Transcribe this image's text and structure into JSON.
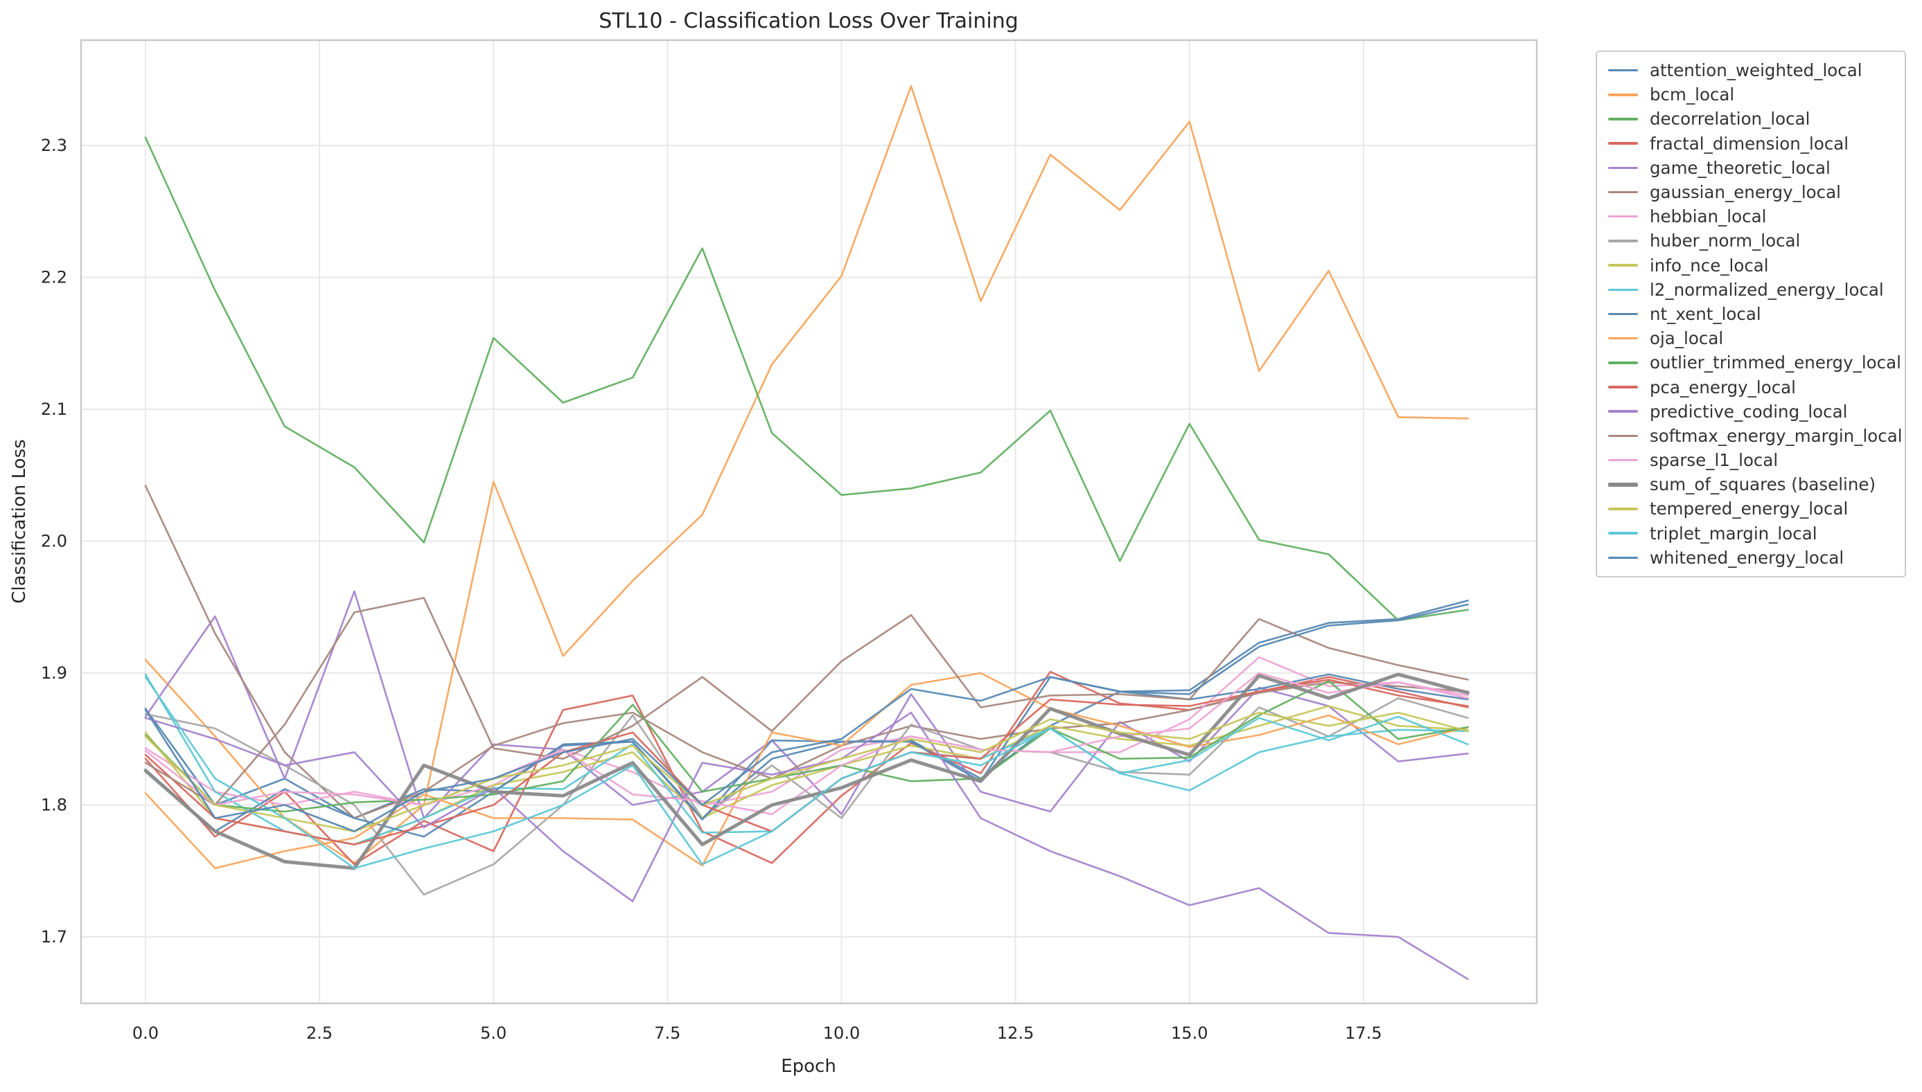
{
  "title": "STL10 - Classification Loss Over Training",
  "x_axis": {
    "label": "Epoch",
    "ticks": [
      "0.0",
      "2.5",
      "5.0",
      "7.5",
      "10.0",
      "12.5",
      "15.0",
      "17.5"
    ]
  },
  "y_axis": {
    "label": "Classification Loss",
    "ticks": [
      "1.7",
      "1.8",
      "1.9",
      "2.0",
      "2.1",
      "2.2",
      "2.3"
    ]
  },
  "colors": {
    "blue": "#5789b3",
    "orange": "#f8a55d",
    "green": "#62b062",
    "red": "#d8685f",
    "purple": "#a583cd",
    "brown": "#a8877d",
    "pink": "#eda4d4",
    "gray": "#a6a6a6",
    "olive": "#c5c659",
    "cyan": "#5dc8d6",
    "baseline_gray": "#8a8a8a",
    "grid": "#e8e8e8",
    "frame": "#c9c9c9",
    "text": "#262626",
    "legend_text": "#333333"
  },
  "chart_data": {
    "type": "line",
    "x": [
      0,
      1,
      2,
      3,
      4,
      5,
      6,
      7,
      8,
      9,
      10,
      11,
      12,
      13,
      14,
      15,
      16,
      17,
      18,
      19
    ],
    "xlim": [
      -0.95,
      20.0
    ],
    "ylim": [
      1.643,
      2.38
    ],
    "grid": true,
    "legend_position": "right-outside",
    "xlabel": "Epoch",
    "ylabel": "Classification Loss",
    "series": [
      {
        "name": "attention_weighted_local",
        "color": "#5789b3",
        "line_width": 2.6,
        "values": [
          1.873,
          1.8,
          1.82,
          1.79,
          1.812,
          1.81,
          1.845,
          1.848,
          1.79,
          1.835,
          1.848,
          1.849,
          1.82,
          1.86,
          1.886,
          1.887,
          1.923,
          1.938,
          1.941,
          1.955
        ]
      },
      {
        "name": "bcm_local",
        "color": "#f8a55d",
        "line_width": 2.6,
        "values": [
          1.91,
          1.852,
          1.79,
          1.756,
          1.8,
          2.045,
          1.913,
          1.97,
          2.02,
          2.134,
          2.201,
          2.345,
          2.182,
          2.293,
          2.251,
          2.318,
          2.129,
          2.205,
          2.094,
          2.093
        ]
      },
      {
        "name": "decorrelation_local",
        "color": "#62b062",
        "line_width": 2.6,
        "values": [
          2.306,
          2.19,
          2.087,
          2.056,
          1.999,
          2.154,
          2.105,
          2.124,
          2.222,
          2.082,
          2.035,
          2.04,
          2.052,
          2.099,
          1.985,
          2.089,
          2.001,
          1.99,
          1.94,
          1.948
        ]
      },
      {
        "name": "fractal_dimension_local",
        "color": "#d8685f",
        "line_width": 2.6,
        "values": [
          1.835,
          1.776,
          1.81,
          1.755,
          1.788,
          1.765,
          1.872,
          1.883,
          1.78,
          1.756,
          1.807,
          1.847,
          1.824,
          1.901,
          1.877,
          1.872,
          1.886,
          1.897,
          1.886,
          1.874
        ]
      },
      {
        "name": "game_theoretic_local",
        "color": "#a583cd",
        "line_width": 2.6,
        "values": [
          1.867,
          1.943,
          1.82,
          1.962,
          1.79,
          1.846,
          1.842,
          1.8,
          1.81,
          1.849,
          1.793,
          1.884,
          1.81,
          1.795,
          1.863,
          1.833,
          1.889,
          1.875,
          1.833,
          1.839
        ]
      },
      {
        "name": "gaussian_energy_local",
        "color": "#a8877d",
        "line_width": 2.6,
        "values": [
          2.042,
          1.93,
          1.84,
          1.79,
          1.81,
          1.845,
          1.862,
          1.87,
          1.84,
          1.82,
          1.845,
          1.86,
          1.85,
          1.858,
          1.862,
          1.872,
          1.885,
          1.893,
          1.89,
          1.886
        ]
      },
      {
        "name": "hebbian_local",
        "color": "#eda4d4",
        "line_width": 2.6,
        "values": [
          1.843,
          1.81,
          1.8,
          1.81,
          1.8,
          1.815,
          1.842,
          1.825,
          1.8,
          1.81,
          1.842,
          1.852,
          1.842,
          1.84,
          1.84,
          1.865,
          1.912,
          1.89,
          1.893,
          1.883
        ]
      },
      {
        "name": "huber_norm_local",
        "color": "#a6a6a6",
        "line_width": 2.6,
        "values": [
          1.869,
          1.858,
          1.83,
          1.8,
          1.732,
          1.755,
          1.8,
          1.868,
          1.79,
          1.83,
          1.79,
          1.861,
          1.842,
          1.84,
          1.825,
          1.823,
          1.874,
          1.852,
          1.881,
          1.866
        ]
      },
      {
        "name": "info_nce_local",
        "color": "#c5c659",
        "line_width": 2.6,
        "values": [
          1.855,
          1.79,
          1.78,
          1.77,
          1.79,
          1.815,
          1.825,
          1.84,
          1.79,
          1.815,
          1.83,
          1.845,
          1.835,
          1.86,
          1.85,
          1.845,
          1.86,
          1.875,
          1.86,
          1.857
        ]
      },
      {
        "name": "l2_normalized_energy_local",
        "color": "#5dc8d6",
        "line_width": 2.6,
        "values": [
          1.899,
          1.81,
          1.78,
          1.77,
          1.79,
          1.813,
          1.812,
          1.846,
          1.779,
          1.78,
          1.82,
          1.84,
          1.835,
          1.858,
          1.824,
          1.811,
          1.84,
          1.852,
          1.857,
          1.856
        ]
      },
      {
        "name": "nt_xent_local",
        "color": "#5789b3",
        "line_width": 2.6,
        "values": [
          1.827,
          1.78,
          1.812,
          1.79,
          1.776,
          1.81,
          1.846,
          1.848,
          1.789,
          1.849,
          1.848,
          1.848,
          1.818,
          1.897,
          1.886,
          1.88,
          1.888,
          1.899,
          1.888,
          1.88
        ]
      },
      {
        "name": "oja_local",
        "color": "#f8a55d",
        "line_width": 2.6,
        "values": [
          1.809,
          1.752,
          1.765,
          1.775,
          1.808,
          1.79,
          1.79,
          1.789,
          1.754,
          1.855,
          1.845,
          1.891,
          1.9,
          1.873,
          1.86,
          1.844,
          1.853,
          1.868,
          1.846,
          1.859
        ]
      },
      {
        "name": "outlier_trimmed_energy_local",
        "color": "#62b062",
        "line_width": 2.6,
        "values": [
          1.853,
          1.8,
          1.795,
          1.802,
          1.804,
          1.808,
          1.818,
          1.876,
          1.81,
          1.82,
          1.83,
          1.818,
          1.82,
          1.858,
          1.835,
          1.836,
          1.868,
          1.894,
          1.85,
          1.859
        ]
      },
      {
        "name": "pca_energy_local",
        "color": "#d8685f",
        "line_width": 2.6,
        "values": [
          1.838,
          1.79,
          1.78,
          1.77,
          1.784,
          1.8,
          1.84,
          1.855,
          1.8,
          1.78,
          1.82,
          1.84,
          1.835,
          1.88,
          1.876,
          1.875,
          1.886,
          1.895,
          1.883,
          1.875
        ]
      },
      {
        "name": "predictive_coding_local",
        "color": "#a583cd",
        "line_width": 2.6,
        "values": [
          1.866,
          1.85,
          1.83,
          1.84,
          1.783,
          1.813,
          1.765,
          1.727,
          1.832,
          1.823,
          1.835,
          1.87,
          1.79,
          1.765,
          1.746,
          1.724,
          1.737,
          1.703,
          1.7,
          1.668
        ]
      },
      {
        "name": "softmax_energy_margin_local",
        "color": "#a8877d",
        "line_width": 2.6,
        "values": [
          1.832,
          1.8,
          1.861,
          1.946,
          1.957,
          1.843,
          1.835,
          1.86,
          1.897,
          1.856,
          1.909,
          1.944,
          1.874,
          1.883,
          1.884,
          1.88,
          1.941,
          1.919,
          1.906,
          1.895
        ]
      },
      {
        "name": "sparse_l1_local",
        "color": "#eda4d4",
        "line_width": 2.6,
        "values": [
          1.841,
          1.8,
          1.81,
          1.808,
          1.8,
          1.82,
          1.842,
          1.808,
          1.803,
          1.793,
          1.83,
          1.852,
          1.842,
          1.84,
          1.852,
          1.858,
          1.9,
          1.885,
          1.893,
          1.881
        ]
      },
      {
        "name": "sum_of_squares (baseline)",
        "color": "#8a8a8a",
        "line_width": 5,
        "values": [
          1.826,
          1.78,
          1.757,
          1.752,
          1.83,
          1.81,
          1.807,
          1.832,
          1.77,
          1.8,
          1.813,
          1.834,
          1.818,
          1.873,
          1.854,
          1.838,
          1.898,
          1.881,
          1.899,
          1.885
        ]
      },
      {
        "name": "tempered_energy_local",
        "color": "#c5c659",
        "line_width": 2.6,
        "values": [
          1.852,
          1.8,
          1.79,
          1.78,
          1.8,
          1.82,
          1.83,
          1.845,
          1.8,
          1.82,
          1.835,
          1.85,
          1.84,
          1.865,
          1.855,
          1.85,
          1.87,
          1.86,
          1.87,
          1.856
        ]
      },
      {
        "name": "triplet_margin_local",
        "color": "#5dc8d6",
        "line_width": 2.6,
        "values": [
          1.897,
          1.82,
          1.79,
          1.752,
          1.767,
          1.78,
          1.8,
          1.83,
          1.755,
          1.78,
          1.82,
          1.84,
          1.83,
          1.858,
          1.824,
          1.834,
          1.866,
          1.849,
          1.867,
          1.846
        ]
      },
      {
        "name": "whitened_energy_local",
        "color": "#5789b3",
        "line_width": 2.6,
        "values": [
          1.872,
          1.79,
          1.8,
          1.78,
          1.81,
          1.82,
          1.84,
          1.85,
          1.8,
          1.84,
          1.85,
          1.888,
          1.879,
          1.897,
          1.886,
          1.884,
          1.92,
          1.936,
          1.94,
          1.952
        ]
      }
    ]
  }
}
